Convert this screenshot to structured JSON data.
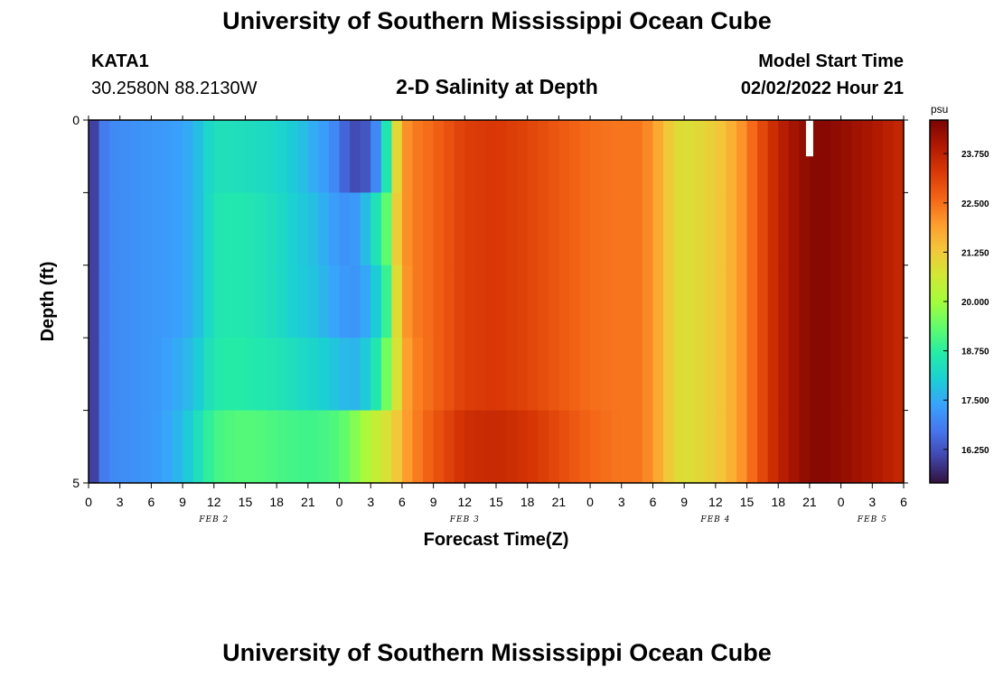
{
  "title": "University of Southern Mississippi Ocean Cube",
  "footer_title": "University of Southern Mississippi Ocean Cube",
  "station": {
    "id": "KATA1",
    "coords": "30.2580N  88.2130W"
  },
  "model": {
    "label": "Model Start Time",
    "time": "02/02/2022 Hour 21"
  },
  "chart_data": {
    "type": "heatmap",
    "title": "2-D Salinity at Depth",
    "xlabel": "Forecast Time(Z)",
    "ylabel": "Depth (ft)",
    "y_tick_labels": [
      "0",
      "5"
    ],
    "ylim": [
      0,
      5
    ],
    "x_hours": [
      0,
      3,
      6,
      9,
      12,
      15,
      18,
      21,
      24,
      27,
      30,
      33,
      36,
      39,
      42,
      45,
      48,
      51,
      54,
      57,
      60,
      63,
      66,
      69,
      72,
      75,
      78
    ],
    "x_tick_labels": [
      "0",
      "3",
      "6",
      "9",
      "12",
      "15",
      "18",
      "21",
      "0",
      "3",
      "6",
      "9",
      "12",
      "15",
      "18",
      "21",
      "0",
      "3",
      "6",
      "9",
      "12",
      "15",
      "18",
      "21",
      "0",
      "3",
      "6"
    ],
    "date_labels": [
      {
        "text": "FEB 2",
        "hour": 12
      },
      {
        "text": "FEB 3",
        "hour": 36
      },
      {
        "text": "FEB 4",
        "hour": 60
      },
      {
        "text": "FEB 5",
        "hour": 75
      }
    ],
    "colorbar": {
      "unit": "psu",
      "min": 15.4,
      "max": 24.6,
      "ticks": [
        "16.250",
        "17.500",
        "18.750",
        "20.000",
        "21.250",
        "22.500",
        "23.750"
      ],
      "colors": [
        "#30123b",
        "#4145ab",
        "#4675ed",
        "#39a2fc",
        "#1bcfd4",
        "#24eca6",
        "#61fc6c",
        "#a4fc3b",
        "#d1e834",
        "#f3c63a",
        "#fe9b2d",
        "#f36315",
        "#d93806",
        "#b11901",
        "#7a0402"
      ]
    },
    "depth_layers": 5,
    "anomaly": {
      "hour": 69,
      "layer": 0
    },
    "profile": {
      "hours": [
        0,
        0.5,
        1,
        2,
        4,
        6,
        8,
        9,
        10,
        10.5,
        11,
        12,
        14,
        16,
        18,
        20,
        22,
        23,
        24,
        25,
        26,
        27,
        28,
        28.5,
        29,
        29.5,
        30,
        31,
        33,
        36,
        39,
        42,
        45,
        48,
        51,
        53,
        54,
        55,
        56,
        57,
        58,
        60,
        62,
        63,
        64,
        65,
        66,
        67,
        68,
        69,
        70,
        72,
        75,
        78
      ],
      "layers": [
        [
          15.4,
          16.0,
          16.6,
          17.0,
          17.1,
          17.2,
          17.3,
          17.4,
          17.6,
          17.8,
          18.0,
          18.4,
          18.4,
          18.3,
          18.2,
          17.9,
          17.4,
          17.2,
          16.8,
          16.2,
          16.1,
          16.5,
          17.5,
          18.5,
          19.7,
          21.0,
          21.9,
          22.3,
          22.6,
          23.2,
          23.3,
          23.1,
          22.8,
          22.5,
          22.4,
          22.4,
          22.0,
          21.5,
          21.0,
          20.8,
          20.9,
          21.2,
          21.8,
          22.3,
          22.8,
          23.3,
          23.7,
          24.0,
          24.2,
          24.4,
          24.5,
          24.3,
          24.0,
          23.6
        ],
        [
          15.4,
          16.0,
          16.6,
          17.0,
          17.1,
          17.2,
          17.3,
          17.4,
          17.6,
          17.8,
          18.0,
          18.5,
          18.6,
          18.5,
          18.3,
          18.0,
          17.7,
          17.4,
          17.2,
          17.1,
          17.4,
          18.1,
          18.8,
          19.3,
          20.0,
          21.2,
          21.9,
          22.3,
          22.6,
          23.2,
          23.3,
          23.1,
          22.8,
          22.5,
          22.4,
          22.4,
          22.0,
          21.5,
          21.0,
          20.8,
          20.9,
          21.2,
          21.8,
          22.3,
          22.8,
          23.3,
          23.7,
          24.0,
          24.2,
          24.4,
          24.5,
          24.3,
          24.0,
          23.6
        ],
        [
          15.4,
          16.0,
          16.6,
          17.0,
          17.1,
          17.2,
          17.3,
          17.4,
          17.6,
          17.8,
          18.0,
          18.5,
          18.6,
          18.5,
          18.3,
          18.0,
          17.8,
          17.5,
          17.3,
          17.2,
          17.2,
          17.7,
          18.3,
          18.9,
          19.6,
          20.9,
          21.8,
          22.3,
          22.6,
          23.2,
          23.3,
          23.1,
          22.8,
          22.5,
          22.4,
          22.4,
          22.0,
          21.5,
          21.0,
          20.8,
          20.9,
          21.2,
          21.8,
          22.3,
          22.8,
          23.3,
          23.7,
          24.0,
          24.2,
          24.4,
          24.5,
          24.3,
          24.0,
          23.6
        ],
        [
          15.4,
          16.0,
          16.6,
          17.0,
          17.1,
          17.2,
          17.4,
          17.6,
          17.8,
          18.0,
          18.2,
          18.6,
          18.7,
          18.6,
          18.5,
          18.3,
          18.1,
          18.0,
          17.8,
          17.6,
          17.7,
          18.2,
          18.9,
          19.5,
          20.2,
          20.8,
          21.6,
          22.2,
          22.6,
          23.2,
          23.3,
          23.1,
          22.8,
          22.5,
          22.4,
          22.4,
          22.0,
          21.5,
          21.0,
          20.8,
          20.9,
          21.2,
          21.8,
          22.3,
          22.8,
          23.3,
          23.7,
          24.0,
          24.2,
          24.4,
          24.5,
          24.3,
          24.0,
          23.6
        ],
        [
          15.4,
          16.0,
          16.6,
          17.0,
          17.1,
          17.2,
          17.5,
          17.8,
          18.1,
          18.4,
          18.6,
          19.0,
          19.2,
          19.2,
          19.1,
          19.0,
          19.0,
          19.1,
          19.2,
          19.5,
          19.9,
          20.3,
          20.6,
          20.8,
          21.0,
          21.3,
          21.7,
          22.2,
          22.8,
          23.5,
          23.6,
          23.4,
          23.0,
          22.6,
          22.4,
          22.4,
          22.0,
          21.5,
          21.0,
          20.8,
          20.9,
          21.2,
          21.8,
          22.3,
          22.8,
          23.3,
          23.7,
          24.0,
          24.2,
          24.4,
          24.5,
          24.3,
          24.0,
          23.6
        ]
      ]
    }
  }
}
